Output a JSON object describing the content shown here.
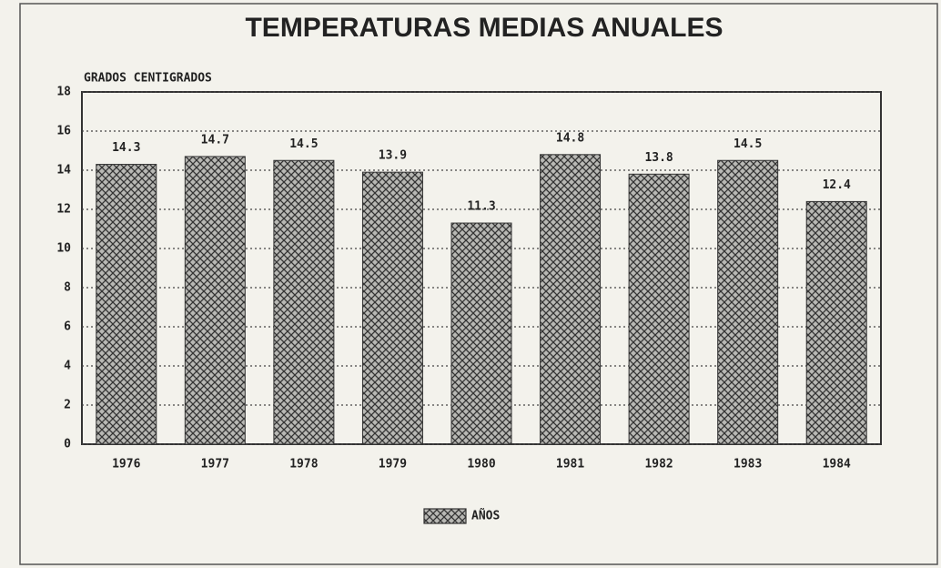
{
  "chart_data": {
    "type": "bar",
    "title": "TEMPERATURAS MEDIAS ANUALES",
    "ylabel": "GRADOS CENTIGRADOS",
    "categories": [
      "1976",
      "1977",
      "1978",
      "1979",
      "1980",
      "1981",
      "1982",
      "1983",
      "1984"
    ],
    "series": [
      {
        "name": "AÑOS",
        "color": "#333333",
        "values": [
          14.3,
          14.7,
          14.5,
          13.9,
          11.3,
          14.8,
          13.8,
          14.5,
          12.4
        ]
      }
    ],
    "ylim": [
      0,
      18
    ],
    "yticks": [
      0,
      2,
      4,
      6,
      8,
      10,
      12,
      14,
      16,
      18
    ],
    "grid": true,
    "legend": "bottom"
  }
}
